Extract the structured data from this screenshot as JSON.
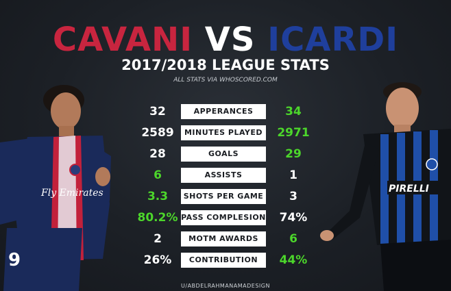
{
  "title": {
    "left": "CAVANI",
    "vs": "VS",
    "right": "ICARDI"
  },
  "subtitle": "2017/2018 LEAGUE STATS",
  "source": "ALL STATS VIA WHOSCORED.COM",
  "credit": "U/ABDELRAHMANAMADESIGN",
  "colors": {
    "cavani": "#c8253f",
    "icardi": "#1f3f9c",
    "highlight": "#4cd62b",
    "normal": "#ffffff"
  },
  "stats": [
    {
      "label": "APPERANCES",
      "left": "32",
      "right": "34",
      "left_color": "#ffffff",
      "right_color": "#4cd62b"
    },
    {
      "label": "MINUTES PLAYED",
      "left": "2589",
      "right": "2971",
      "left_color": "#ffffff",
      "right_color": "#4cd62b"
    },
    {
      "label": "GOALS",
      "left": "28",
      "right": "29",
      "left_color": "#ffffff",
      "right_color": "#4cd62b"
    },
    {
      "label": "ASSISTS",
      "left": "6",
      "right": "1",
      "left_color": "#4cd62b",
      "right_color": "#ffffff"
    },
    {
      "label": "SHOTS PER GAME",
      "left": "3.3",
      "right": "3",
      "left_color": "#4cd62b",
      "right_color": "#ffffff"
    },
    {
      "label": "PASS COMPLESION",
      "left": "80.2%",
      "right": "74%",
      "left_color": "#4cd62b",
      "right_color": "#ffffff"
    },
    {
      "label": "MOTM AWARDS",
      "left": "2",
      "right": "6",
      "left_color": "#ffffff",
      "right_color": "#4cd62b"
    },
    {
      "label": "CONTRIBUTION",
      "left": "26%",
      "right": "44%",
      "left_color": "#ffffff",
      "right_color": "#4cd62b"
    }
  ],
  "players": {
    "left": {
      "shirt_sponsor": "Fly Emirates",
      "number": "9"
    },
    "right": {
      "shirt_sponsor": "PIRELLI"
    }
  }
}
